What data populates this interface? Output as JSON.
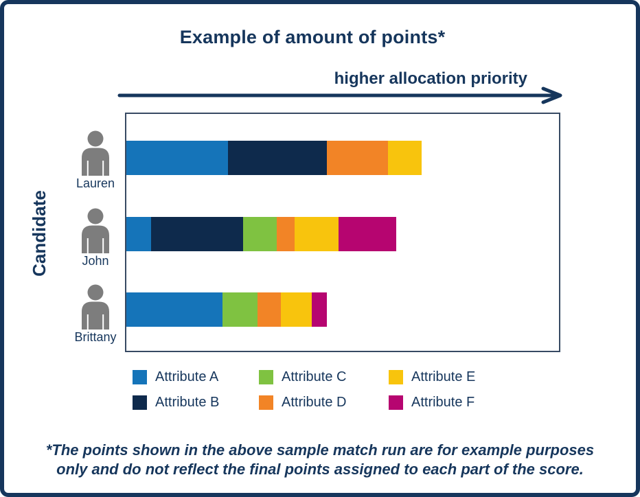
{
  "page": {
    "title": "Example of amount of points*",
    "arrow_label": "higher allocation priority",
    "y_axis_label": "Candidate",
    "footnote_line1": "*The points shown in the above sample match run are for example purposes",
    "footnote_line2": "only and do not reflect the final points assigned to each part of the score."
  },
  "colors": {
    "navy_text": "#16365c",
    "plot_border": "#374a63",
    "icon_gray": "#7d7d7d",
    "attribute_a": "#1574b9",
    "attribute_b": "#0e2a4c",
    "attribute_c": "#7fc241",
    "attribute_d": "#f28426",
    "attribute_e": "#f8c40d",
    "attribute_f": "#b60570"
  },
  "icons": {
    "person": "person-icon",
    "arrow": "arrow-right-icon"
  },
  "legend": {
    "columns": [
      [
        {
          "label": "Attribute A",
          "color": "#1574b9"
        },
        {
          "label": "Attribute B",
          "color": "#0e2a4c"
        }
      ],
      [
        {
          "label": "Attribute C",
          "color": "#7fc241"
        },
        {
          "label": "Attribute D",
          "color": "#f28426"
        }
      ],
      [
        {
          "label": "Attribute E",
          "color": "#f8c40d"
        },
        {
          "label": "Attribute F",
          "color": "#b60570"
        }
      ]
    ]
  },
  "chart_data": {
    "type": "bar",
    "orientation": "horizontal",
    "stacked": true,
    "title": "Example of amount of points*",
    "xlabel": "higher allocation priority",
    "ylabel": "Candidate",
    "categories": [
      "Lauren",
      "John",
      "Brittany"
    ],
    "series": [
      {
        "name": "Attribute A",
        "color": "#1574b9",
        "values": [
          148,
          36,
          140
        ]
      },
      {
        "name": "Attribute B",
        "color": "#0e2a4c",
        "values": [
          144,
          134,
          0
        ]
      },
      {
        "name": "Attribute C",
        "color": "#7fc241",
        "values": [
          0,
          49,
          51
        ]
      },
      {
        "name": "Attribute D",
        "color": "#f28426",
        "values": [
          89,
          26,
          34
        ]
      },
      {
        "name": "Attribute E",
        "color": "#f8c40d",
        "values": [
          49,
          64,
          45
        ]
      },
      {
        "name": "Attribute F",
        "color": "#b60570",
        "values": [
          0,
          84,
          22
        ]
      }
    ],
    "totals": [
      430,
      393,
      292
    ],
    "value_scale": "relative points estimated from bar length in pixels; no numeric axis shown",
    "legend_position": "bottom",
    "grid": false
  }
}
